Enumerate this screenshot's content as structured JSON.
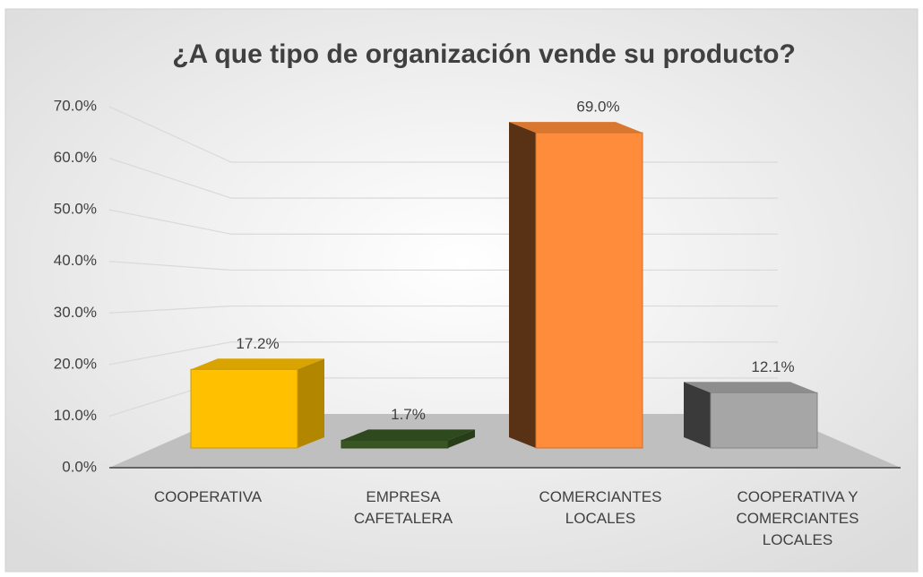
{
  "chart_data": {
    "type": "bar3d",
    "title": "¿A que tipo de organización vende su producto?",
    "categories": [
      "COOPERATIVA",
      "EMPRESA CAFETALERA",
      "COMERCIANTES LOCALES",
      "COOPERATIVA Y COMERCIANTES LOCALES"
    ],
    "values": [
      17.2,
      1.7,
      69.0,
      12.1
    ],
    "value_labels": [
      "17.2%",
      "1.7%",
      "69.0%",
      "12.1%"
    ],
    "colors": [
      "#ffc000",
      "#375623",
      "#ff8c3a",
      "#a6a6a6"
    ],
    "ylim": [
      0,
      70
    ],
    "yticks": [
      {
        "value": 0,
        "label": "0.0%"
      },
      {
        "value": 10,
        "label": "10.0%"
      },
      {
        "value": 20,
        "label": "20.0%"
      },
      {
        "value": 30,
        "label": "30.0%"
      },
      {
        "value": 40,
        "label": "40.0%"
      },
      {
        "value": 50,
        "label": "50.0%"
      },
      {
        "value": 60,
        "label": "60.0%"
      },
      {
        "value": 70,
        "label": "70.0%"
      }
    ],
    "grid": true
  }
}
